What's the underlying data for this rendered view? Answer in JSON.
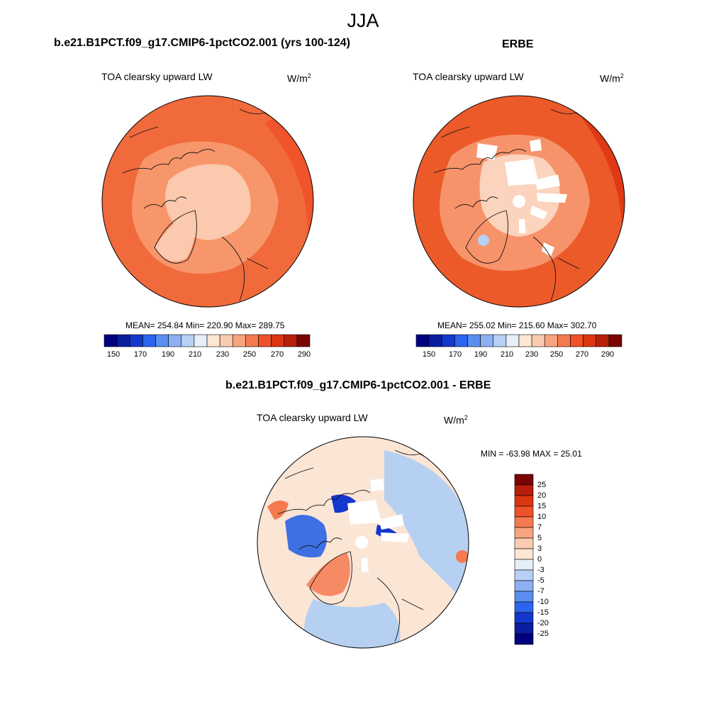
{
  "title": "JJA",
  "panels": [
    {
      "id": "model",
      "title": "b.e21.B1PCT.f09_g17.CMIP6-1pctCO2.001 (yrs 100-124)",
      "variable": "TOA clearsky upward LW",
      "units_base": "W/m",
      "units_exp": "2",
      "stats": "MEAN= 254.84  Min= 220.90  Max= 289.75"
    },
    {
      "id": "obs",
      "title": "ERBE",
      "variable": "TOA clearsky upward LW",
      "units_base": "W/m",
      "units_exp": "2",
      "stats": "MEAN= 255.02  Min= 215.60  Max= 302.70"
    },
    {
      "id": "diff",
      "title": "b.e21.B1PCT.f09_g17.CMIP6-1pctCO2.001 - ERBE",
      "variable": "TOA clearsky upward LW",
      "units_base": "W/m",
      "units_exp": "2",
      "stats": "MIN = -63.98 MAX =  25.01"
    }
  ],
  "colorbar_abs": {
    "colors": [
      "#000080",
      "#0a1e9f",
      "#1437cd",
      "#2d64ed",
      "#5a8ef0",
      "#8cb0f2",
      "#b8d0f5",
      "#e6eef8",
      "#fde6d2",
      "#fbcbb0",
      "#f8a47e",
      "#f47a50",
      "#ef5228",
      "#dd3412",
      "#b81e0a",
      "#7a0403"
    ],
    "labels": [
      "150",
      "170",
      "190",
      "210",
      "230",
      "250",
      "270",
      "290"
    ]
  },
  "colorbar_diff": {
    "colors": [
      "#000080",
      "#0a1e9f",
      "#1437cd",
      "#2d64ed",
      "#5a8ef0",
      "#8cb0f2",
      "#b8d0f5",
      "#e6eef8",
      "#fde6d2",
      "#fbcbb0",
      "#f8a47e",
      "#f47a50",
      "#ef5228",
      "#dd3412",
      "#b81e0a",
      "#7a0403"
    ],
    "labels": [
      "25",
      "20",
      "15",
      "10",
      "7",
      "5",
      "3",
      "0",
      "-3",
      "-5",
      "-7",
      "-10",
      "-15",
      "-20",
      "-25"
    ]
  },
  "map_colors": {
    "model_outer": "#f06a3c",
    "model_mid": "#f7966a",
    "model_inner": "#fbc9ae",
    "obs_outer": "#ec5a2a",
    "obs_mid": "#f7936a",
    "obs_inner": "#fcd3bd",
    "diff_base": "#fbe5d5",
    "diff_cool": "#b6d0f2",
    "diff_blue": "#3e6fe3",
    "diff_deep": "#1437cd",
    "diff_warm": "#f47a50",
    "missing": "#ffffff",
    "coast": "#111111"
  }
}
